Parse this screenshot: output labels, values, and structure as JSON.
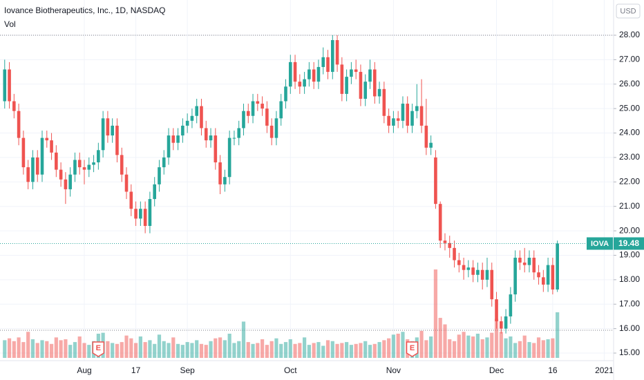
{
  "chart_data": {
    "type": "candlestick",
    "title": "Iovance Biotherapeutics, Inc., 1D, NASDAQ",
    "volume_label": "Vol",
    "currency_button": "USD",
    "symbol_label": "IOVA",
    "up_color": "#26a69a",
    "down_color": "#ef5350",
    "open": [
      25.3,
      26.6,
      25.3,
      24.9,
      23.8,
      22.6,
      22.0,
      23.0,
      22.3,
      23.8,
      23.7,
      23.2,
      22.5,
      22.1,
      21.7,
      22.3,
      22.9,
      22.6,
      22.5,
      22.7,
      22.8,
      23.3,
      24.6,
      23.9,
      24.3,
      23.1,
      22.3,
      21.6,
      20.9,
      20.5,
      20.9,
      20.2,
      21.3,
      21.9,
      22.6,
      23.0,
      23.9,
      23.6,
      23.9,
      24.3,
      24.5,
      24.7,
      25.1,
      24.2,
      23.7,
      23.9,
      22.8,
      21.9,
      22.2,
      23.8,
      23.8,
      24.2,
      24.9,
      24.7,
      25.3,
      25.2,
      25.0,
      24.3,
      23.8,
      24.6,
      25.3,
      25.9,
      26.9,
      26.1,
      25.9,
      26.2,
      26.6,
      26.1,
      26.7,
      27.1,
      26.5,
      27.8,
      26.8,
      25.6,
      26.3,
      26.6,
      26.5,
      25.4,
      26.1,
      26.6,
      25.5,
      25.8,
      24.7,
      24.3,
      24.6,
      24.5,
      25.2,
      24.3,
      24.9,
      25.1,
      24.3,
      23.4,
      23.0,
      21.1,
      19.6,
      19.5,
      19.3,
      18.8,
      18.6,
      18.4,
      18.5,
      18.2,
      18.4,
      18.0,
      18.4,
      17.2,
      16.3,
      16.0,
      16.5,
      17.4,
      18.9,
      18.7,
      18.6,
      18.9,
      18.3,
      18.1,
      17.8,
      18.6,
      17.6
    ],
    "high": [
      27.0,
      26.9,
      25.6,
      25.2,
      24.1,
      22.9,
      23.3,
      23.3,
      24.1,
      24.1,
      24.0,
      23.5,
      22.8,
      22.4,
      22.6,
      23.2,
      23.2,
      22.9,
      23.0,
      23.1,
      23.6,
      24.9,
      24.9,
      24.6,
      24.6,
      23.4,
      22.6,
      21.9,
      21.2,
      21.2,
      21.2,
      21.6,
      22.2,
      22.9,
      23.3,
      24.2,
      24.2,
      24.2,
      24.6,
      24.8,
      25.0,
      25.4,
      25.4,
      24.5,
      24.2,
      24.2,
      23.1,
      22.5,
      24.1,
      24.1,
      24.5,
      25.2,
      25.2,
      25.6,
      25.6,
      25.5,
      25.3,
      24.6,
      24.9,
      25.6,
      26.2,
      27.2,
      27.2,
      26.4,
      26.5,
      26.9,
      26.9,
      27.0,
      27.5,
      27.4,
      28.0,
      28.0,
      27.1,
      26.6,
      26.9,
      27.0,
      26.8,
      26.4,
      27.0,
      26.9,
      26.1,
      26.1,
      25.0,
      24.9,
      24.9,
      25.5,
      25.5,
      25.2,
      26.0,
      26.2,
      25.4,
      23.9,
      23.3,
      21.2,
      19.9,
      19.8,
      19.6,
      19.1,
      18.9,
      18.8,
      18.8,
      18.7,
      18.7,
      18.9,
      18.7,
      17.5,
      16.5,
      16.8,
      17.7,
      19.2,
      19.2,
      19.3,
      19.2,
      19.2,
      18.6,
      18.4,
      18.9,
      18.9,
      19.6
    ],
    "low": [
      25.0,
      25.0,
      24.6,
      23.5,
      22.3,
      21.7,
      21.7,
      22.0,
      22.0,
      23.4,
      22.9,
      22.2,
      21.8,
      21.1,
      21.4,
      22.0,
      22.3,
      21.9,
      22.2,
      22.4,
      22.5,
      23.0,
      23.6,
      23.6,
      22.8,
      22.0,
      21.3,
      20.6,
      20.2,
      20.2,
      19.9,
      19.9,
      21.0,
      21.6,
      22.3,
      22.7,
      23.3,
      23.3,
      23.6,
      24.0,
      24.2,
      24.4,
      23.9,
      23.4,
      23.4,
      22.5,
      21.5,
      21.6,
      21.9,
      23.5,
      23.5,
      23.9,
      24.4,
      24.4,
      24.9,
      24.7,
      24.0,
      23.5,
      23.5,
      24.3,
      25.0,
      25.6,
      25.8,
      25.6,
      25.6,
      25.9,
      25.8,
      25.8,
      26.4,
      26.2,
      26.2,
      26.5,
      25.3,
      25.3,
      26.0,
      26.2,
      25.1,
      25.1,
      25.8,
      25.2,
      25.2,
      24.4,
      24.0,
      24.0,
      24.2,
      24.2,
      24.0,
      24.0,
      24.6,
      24.0,
      23.1,
      23.1,
      20.9,
      19.3,
      19.2,
      18.9,
      18.5,
      18.3,
      18.0,
      18.1,
      17.9,
      17.9,
      17.6,
      17.7,
      16.9,
      16.0,
      15.8,
      15.8,
      16.2,
      17.1,
      18.4,
      18.3,
      18.3,
      18.0,
      17.8,
      17.5,
      17.5,
      17.4,
      17.5
    ],
    "close": [
      26.6,
      25.3,
      24.9,
      23.8,
      22.6,
      22.0,
      23.0,
      22.3,
      23.8,
      23.7,
      23.2,
      22.5,
      22.1,
      21.7,
      22.3,
      22.9,
      22.6,
      22.5,
      22.7,
      22.8,
      23.3,
      24.6,
      23.9,
      24.3,
      23.1,
      22.3,
      21.6,
      20.9,
      20.5,
      20.9,
      20.2,
      21.3,
      21.9,
      22.6,
      23.0,
      23.9,
      23.6,
      23.9,
      24.3,
      24.5,
      24.7,
      25.1,
      24.2,
      23.7,
      23.9,
      22.8,
      21.9,
      22.2,
      23.8,
      23.8,
      24.2,
      24.9,
      24.7,
      25.3,
      25.2,
      25.0,
      24.3,
      23.8,
      24.6,
      25.3,
      25.9,
      26.9,
      26.1,
      25.9,
      26.2,
      26.6,
      26.1,
      26.7,
      27.1,
      26.5,
      27.8,
      26.8,
      25.6,
      26.3,
      26.6,
      26.5,
      25.4,
      26.1,
      26.6,
      25.5,
      25.8,
      24.7,
      24.3,
      24.6,
      24.5,
      25.2,
      24.3,
      24.9,
      25.1,
      24.3,
      23.4,
      23.6,
      21.1,
      19.6,
      19.5,
      19.3,
      18.8,
      18.6,
      18.4,
      18.5,
      18.2,
      18.4,
      18.0,
      18.4,
      17.2,
      16.3,
      16.0,
      16.5,
      17.4,
      18.9,
      18.7,
      18.6,
      18.9,
      18.3,
      18.1,
      17.8,
      18.6,
      17.6,
      19.48
    ],
    "volume": [
      1.9,
      2.1,
      1.8,
      2.2,
      1.7,
      2.8,
      2.0,
      1.6,
      1.9,
      1.8,
      1.5,
      2.2,
      1.9,
      2.0,
      1.4,
      1.7,
      2.3,
      1.6,
      1.4,
      1.8,
      2.6,
      2.7,
      1.8,
      1.6,
      1.5,
      1.7,
      2.4,
      2.1,
      1.6,
      2.3,
      1.7,
      1.9,
      1.5,
      2.5,
      1.8,
      1.6,
      2.2,
      1.5,
      1.4,
      1.7,
      1.6,
      1.9,
      1.5,
      1.4,
      1.8,
      2.1,
      2.2,
      1.9,
      2.6,
      1.6,
      1.8,
      3.9,
      1.7,
      1.5,
      1.6,
      2.0,
      1.4,
      1.8,
      2.1,
      1.5,
      1.7,
      2.0,
      1.5,
      1.6,
      2.2,
      1.4,
      1.6,
      1.7,
      1.3,
      1.9,
      1.8,
      1.5,
      1.6,
      1.7,
      1.4,
      1.5,
      1.6,
      1.8,
      1.4,
      1.5,
      1.7,
      1.9,
      2.1,
      2.5,
      2.6,
      2.8,
      2.0,
      1.8,
      2.2,
      2.9,
      1.9,
      2.3,
      9.5,
      4.3,
      3.6,
      2.0,
      1.8,
      2.5,
      2.8,
      2.4,
      2.3,
      2.6,
      2.0,
      2.2,
      2.7,
      4.2,
      2.8,
      2.1,
      2.3,
      1.6,
      1.8,
      2.4,
      1.7,
      1.6,
      2.2,
      1.9,
      2.0,
      2.1,
      4.9
    ],
    "earnings": [
      {
        "index": 20,
        "label": "E"
      },
      {
        "index": 87,
        "label": "E"
      }
    ],
    "xlim": [
      -1,
      130
    ],
    "xticks": [
      {
        "value": 17,
        "label": "Aug"
      },
      {
        "value": 28,
        "label": "17"
      },
      {
        "value": 39,
        "label": "Sep"
      },
      {
        "value": 61,
        "label": "Oct"
      },
      {
        "value": 83,
        "label": "Nov"
      },
      {
        "value": 105,
        "label": "Dec"
      },
      {
        "value": 117,
        "label": "16"
      },
      {
        "value": 128,
        "label": "2021"
      }
    ],
    "ylim": [
      14.69,
      29.44
    ],
    "yticks": [
      {
        "value": 15,
        "label": "15.00"
      },
      {
        "value": 16,
        "label": "16.00"
      },
      {
        "value": 17,
        "label": "17.00"
      },
      {
        "value": 18,
        "label": "18.00"
      },
      {
        "value": 19,
        "label": "19.00"
      },
      {
        "value": 20,
        "label": "20.00"
      },
      {
        "value": 21,
        "label": "21.00"
      },
      {
        "value": 22,
        "label": "22.00"
      },
      {
        "value": 23,
        "label": "23.00"
      },
      {
        "value": 24,
        "label": "24.00"
      },
      {
        "value": 25,
        "label": "25.00"
      },
      {
        "value": 26,
        "label": "26.00"
      },
      {
        "value": 27,
        "label": "27.00"
      },
      {
        "value": 28,
        "label": "28.00"
      }
    ],
    "grid": true
  }
}
